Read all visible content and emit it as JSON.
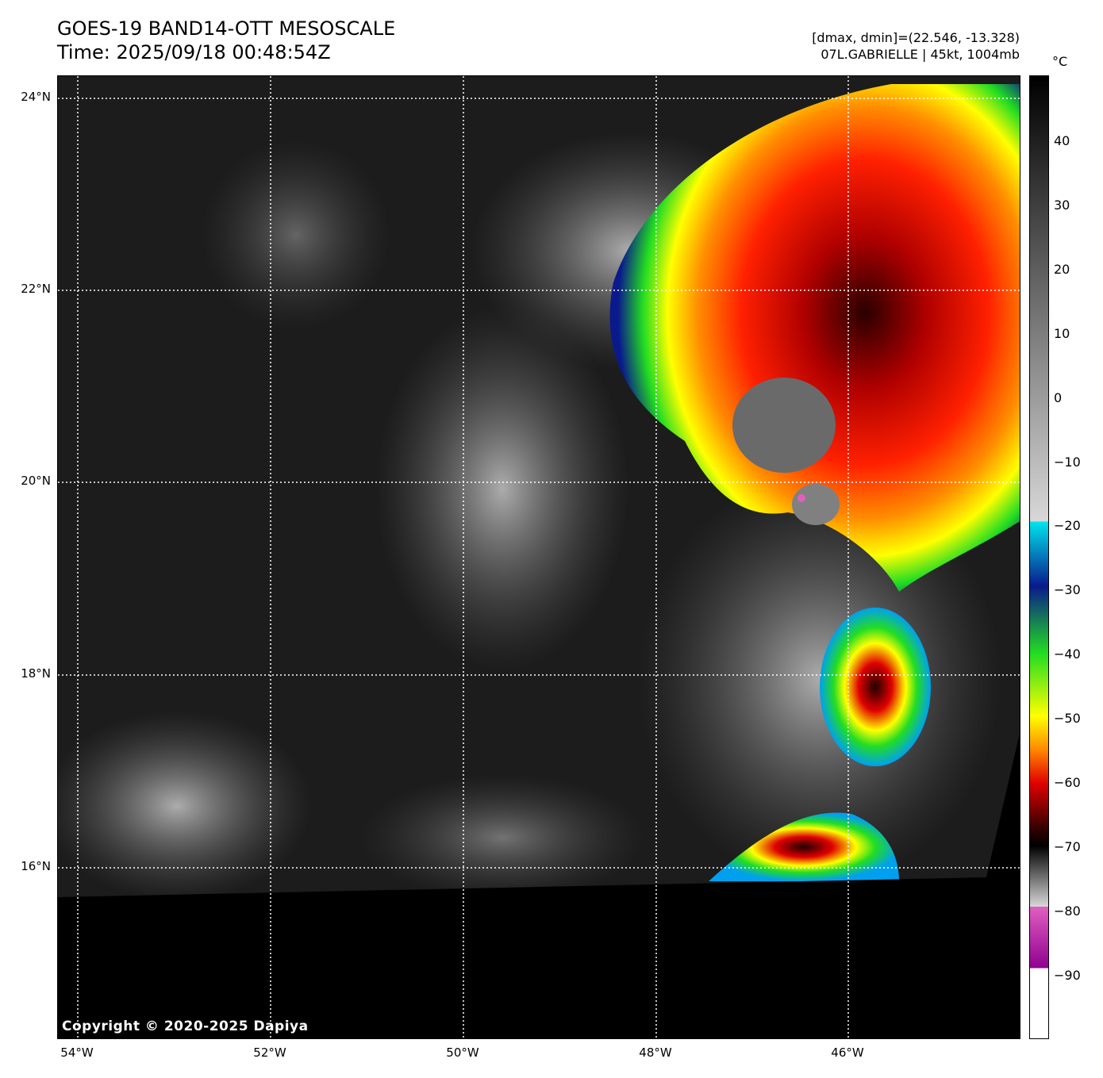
{
  "header": {
    "title_line1": "GOES-19 BAND14-OTT MESOSCALE",
    "title_line2": "Time: 2025/09/18 00:48:54Z",
    "info_line1": "[dmax, dmin]=(22.546, -13.328)",
    "info_line2": "07L.GABRIELLE | 45kt, 1004mb"
  },
  "map": {
    "lat_labels": [
      "24°N",
      "22°N",
      "20°N",
      "18°N",
      "16°N"
    ],
    "lon_labels": [
      "54°W",
      "52°W",
      "50°W",
      "48°W",
      "46°W"
    ],
    "copyright": "Copyright © 2020-2025 Dapiya",
    "gridline_style": "dotted white",
    "background_color": "#1a1a1a",
    "no_data_color": "#000000"
  },
  "colorbar": {
    "unit": "°C",
    "tick_labels": [
      "40",
      "30",
      "20",
      "10",
      "0",
      "−10",
      "−20",
      "−30",
      "−40",
      "−50",
      "−60",
      "−70",
      "−80",
      "−90"
    ],
    "colors": {
      "warm": "#000000",
      "gray_top": "#d8d8d8",
      "cyan": "#00e5ee",
      "blue": "#0a1a8c",
      "green": "#22dd22",
      "yellow": "#ffff00",
      "orange": "#ff8800",
      "red": "#e00000",
      "dark_red": "#3a0000",
      "pink": "#e060c0",
      "purple": "#900090",
      "cold": "#ffffff"
    }
  }
}
